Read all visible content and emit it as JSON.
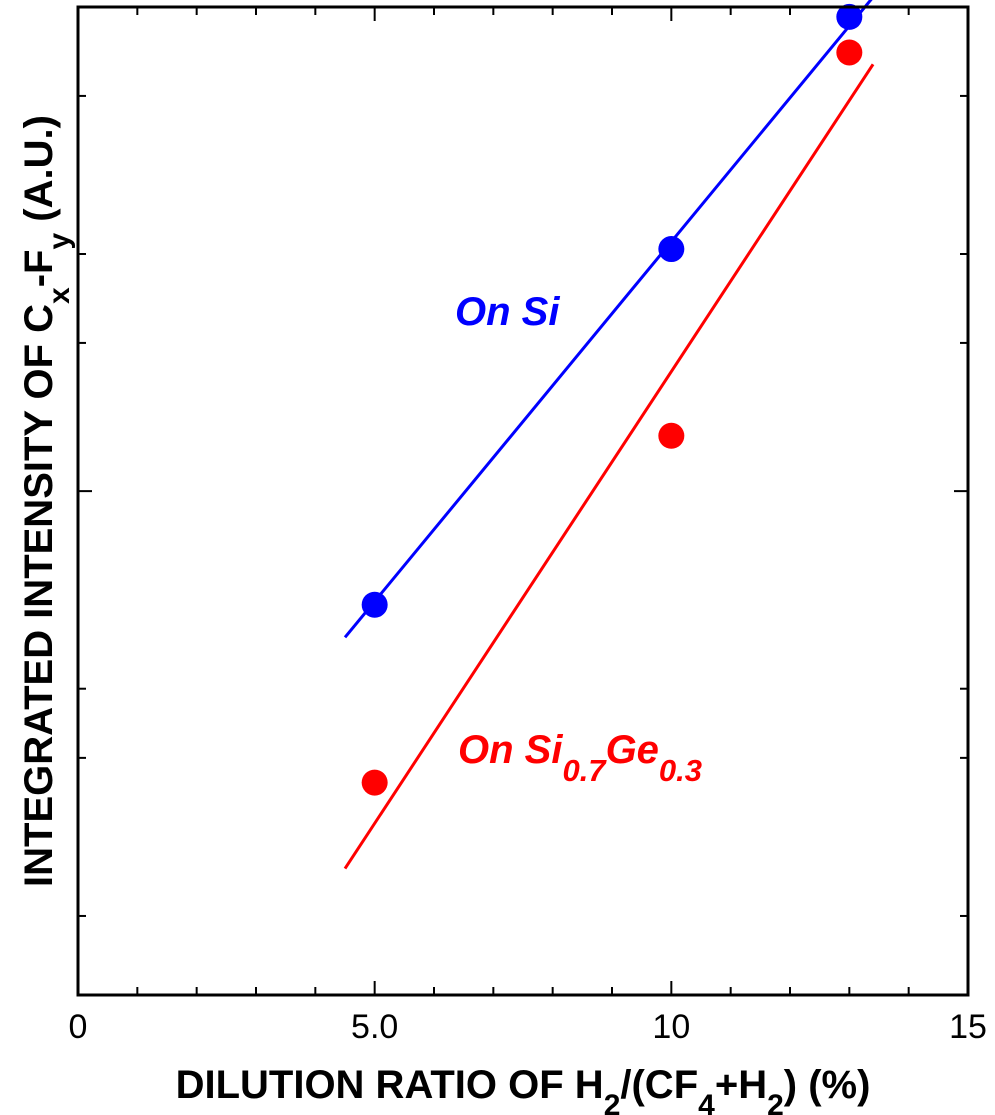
{
  "chart_data": {
    "type": "scatter",
    "title": "",
    "xlabel": {
      "parts": [
        {
          "text": "DILUTION RATIO OF H",
          "sub": false
        },
        {
          "text": "2",
          "sub": true
        },
        {
          "text": "/(CF",
          "sub": false
        },
        {
          "text": "4",
          "sub": true
        },
        {
          "text": "+H",
          "sub": false
        },
        {
          "text": "2",
          "sub": true
        },
        {
          "text": ") (%)",
          "sub": false
        }
      ]
    },
    "ylabel": {
      "parts": [
        {
          "text": "INTEGRATED INTENSITY OF C",
          "sub": false
        },
        {
          "text": "x",
          "sub": true
        },
        {
          "text": "-F",
          "sub": false
        },
        {
          "text": "y",
          "sub": true
        },
        {
          "text": " (A.U.)",
          "sub": false
        }
      ]
    },
    "xlim": [
      0,
      15
    ],
    "ylim": [
      0,
      1
    ],
    "x_ticks": [
      {
        "value": 0,
        "label": "0"
      },
      {
        "value": 5,
        "label": "5.0"
      },
      {
        "value": 10,
        "label": "10"
      },
      {
        "value": 15,
        "label": "15"
      }
    ],
    "x_minor_step": 1,
    "y_ticks": [
      0.08,
      0.24,
      0.31,
      0.51,
      0.66,
      0.75,
      0.91
    ],
    "grid": false,
    "legend": "none",
    "series": [
      {
        "color": "#0000ff",
        "points": [
          {
            "x": 5,
            "y": 0.395
          },
          {
            "x": 10,
            "y": 0.755
          },
          {
            "x": 13,
            "y": 0.99
          }
        ],
        "fit": {
          "x": [
            4.5,
            13.4
          ],
          "y": [
            0.362,
            1.01
          ]
        }
      },
      {
        "color": "#ff0000",
        "points": [
          {
            "x": 5,
            "y": 0.215
          },
          {
            "x": 10,
            "y": 0.566
          },
          {
            "x": 13,
            "y": 0.954
          }
        ],
        "fit": {
          "x": [
            4.5,
            13.4
          ],
          "y": [
            0.128,
            0.942
          ]
        }
      }
    ],
    "annotations": [
      {
        "color": "#0000ff",
        "parts": [
          {
            "text": "On Si",
            "sub": false
          }
        ]
      },
      {
        "color": "#ff0000",
        "parts": [
          {
            "text": "On Si",
            "sub": false
          },
          {
            "text": "0.7",
            "sub": true
          },
          {
            "text": "Ge",
            "sub": false
          },
          {
            "text": "0.3",
            "sub": true
          }
        ]
      }
    ]
  }
}
